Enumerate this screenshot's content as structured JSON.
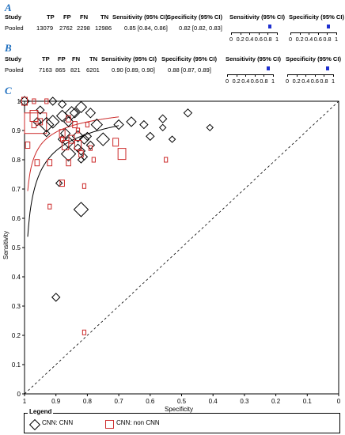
{
  "panels": {
    "a": {
      "label": "A",
      "headers": [
        "Study",
        "TP",
        "FP",
        "FN",
        "TN",
        "Sensitivity (95% CI)",
        "Specificity (95% CI)"
      ],
      "row": {
        "study": "Pooled",
        "tp": "13079",
        "fp": "2762",
        "fn": "2298",
        "tn": "12986",
        "sens": "0.85 [0.84, 0.86]",
        "spec": "0.82 [0.82, 0.83]"
      },
      "forest_sens_title": "Sensitivity (95% CI)",
      "forest_spec_title": "Specificity (95% CI)",
      "sens_value": 0.85,
      "spec_value": 0.82
    },
    "b": {
      "label": "B",
      "headers": [
        "Study",
        "TP",
        "FP",
        "FN",
        "TN",
        "Sensitivity (95% CI)",
        "Specificity (95% CI)"
      ],
      "row": {
        "study": "Pooled",
        "tp": "7163",
        "fp": "865",
        "fn": "821",
        "tn": "6201",
        "sens": "0.90 [0.89, 0.90]",
        "spec": "0.88 [0.87, 0.89]"
      },
      "forest_sens_title": "Sensitivity (95% CI)",
      "forest_spec_title": "Specificity (95% CI)",
      "sens_value": 0.9,
      "spec_value": 0.88
    },
    "c": {
      "label": "C"
    }
  },
  "forest_ticks": [
    "0",
    "0.2",
    "0.4",
    "0.6",
    "0.8",
    "1"
  ],
  "colors": {
    "cnn": "#000000",
    "noncnn": "#cc2a2a",
    "estimate": "#1e2fcf",
    "panel_label": "#1f6fbf"
  },
  "chart_data": {
    "type": "scatter",
    "title": "",
    "xlabel": "Specificity",
    "ylabel": "Sensitivity",
    "xlim": [
      1,
      0
    ],
    "ylim": [
      0,
      1
    ],
    "x_ticks": [
      "1",
      "0.9",
      "0.8",
      "0.7",
      "0.6",
      "0.5",
      "0.4",
      "0.3",
      "0.2",
      "0.1",
      "0"
    ],
    "y_ticks": [
      "0",
      "0.1",
      "0.2",
      "0.3",
      "0.4",
      "0.5",
      "0.6",
      "0.7",
      "0.8",
      "0.9",
      "1"
    ],
    "legend_title": "Legend",
    "legend": [
      "CNN: CNN",
      "CNN: non CNN"
    ],
    "reference_line": [
      [
        1,
        0
      ],
      [
        0,
        1
      ]
    ],
    "series": [
      {
        "name": "CNN: CNN",
        "marker": "diamond",
        "points": [
          [
            1.0,
            1.0,
            6
          ],
          [
            0.91,
            1.0,
            5
          ],
          [
            0.88,
            0.99,
            5
          ],
          [
            0.95,
            0.97,
            5
          ],
          [
            0.82,
            0.98,
            7
          ],
          [
            0.85,
            0.96,
            8
          ],
          [
            0.79,
            0.96,
            6
          ],
          [
            0.84,
            0.96,
            6
          ],
          [
            0.88,
            0.95,
            7
          ],
          [
            0.91,
            0.93,
            8
          ],
          [
            0.96,
            0.93,
            5
          ],
          [
            0.86,
            0.93,
            6
          ],
          [
            0.93,
            0.92,
            9
          ],
          [
            0.77,
            0.92,
            7
          ],
          [
            0.7,
            0.92,
            6
          ],
          [
            0.66,
            0.93,
            6
          ],
          [
            0.62,
            0.92,
            5
          ],
          [
            0.56,
            0.94,
            5
          ],
          [
            0.48,
            0.96,
            5
          ],
          [
            0.41,
            0.91,
            4
          ],
          [
            0.56,
            0.91,
            4
          ],
          [
            0.6,
            0.88,
            5
          ],
          [
            0.87,
            0.89,
            6
          ],
          [
            0.83,
            0.88,
            7
          ],
          [
            0.8,
            0.88,
            5
          ],
          [
            0.75,
            0.87,
            8
          ],
          [
            0.81,
            0.87,
            6
          ],
          [
            0.86,
            0.86,
            7
          ],
          [
            0.79,
            0.85,
            5
          ],
          [
            0.83,
            0.84,
            5
          ],
          [
            0.86,
            0.82,
            9
          ],
          [
            0.82,
            0.83,
            5
          ],
          [
            0.81,
            0.81,
            4
          ],
          [
            0.82,
            0.8,
            4
          ],
          [
            0.89,
            0.72,
            4
          ],
          [
            0.82,
            0.63,
            9
          ],
          [
            0.9,
            0.33,
            5
          ],
          [
            0.93,
            0.89,
            4
          ],
          [
            0.88,
            0.87,
            5
          ],
          [
            0.53,
            0.87,
            4
          ]
        ]
      },
      {
        "name": "CNN: non CNN",
        "marker": "square",
        "points": [
          [
            1.0,
            1.0,
            5
          ],
          [
            0.97,
            1.0,
            3
          ],
          [
            0.93,
            1.0,
            3
          ],
          [
            0.97,
            0.95,
            7
          ],
          [
            0.97,
            0.92,
            4
          ],
          [
            0.99,
            0.85,
            4
          ],
          [
            0.95,
            0.93,
            4
          ],
          [
            0.86,
            0.94,
            4
          ],
          [
            0.84,
            0.92,
            4
          ],
          [
            0.83,
            0.9,
            3
          ],
          [
            0.8,
            0.92,
            3
          ],
          [
            0.88,
            0.89,
            5
          ],
          [
            0.85,
            0.87,
            5
          ],
          [
            0.87,
            0.85,
            6
          ],
          [
            0.83,
            0.85,
            6
          ],
          [
            0.79,
            0.84,
            3
          ],
          [
            0.82,
            0.82,
            4
          ],
          [
            0.78,
            0.8,
            3
          ],
          [
            0.96,
            0.79,
            4
          ],
          [
            0.92,
            0.79,
            4
          ],
          [
            0.86,
            0.79,
            4
          ],
          [
            0.71,
            0.86,
            5
          ],
          [
            0.69,
            0.82,
            7
          ],
          [
            0.55,
            0.8,
            3
          ],
          [
            0.88,
            0.72,
            4
          ],
          [
            0.81,
            0.71,
            3
          ],
          [
            0.92,
            0.64,
            3
          ],
          [
            0.88,
            0.87,
            3
          ],
          [
            0.81,
            0.21,
            3
          ]
        ]
      }
    ],
    "sroc_curves": [
      {
        "name": "CNN: CNN",
        "color": "#000000",
        "threshold": 0.85,
        "k": 0.6
      },
      {
        "name": "CNN: non CNN",
        "color": "#cc2a2a",
        "threshold": 0.9,
        "k": 0.55
      }
    ],
    "summary_boxes": [
      {
        "series": "CNN: non CNN",
        "spec_range": [
          1.0,
          0.93
        ],
        "sens_range": [
          0.89,
          0.96
        ]
      }
    ]
  }
}
